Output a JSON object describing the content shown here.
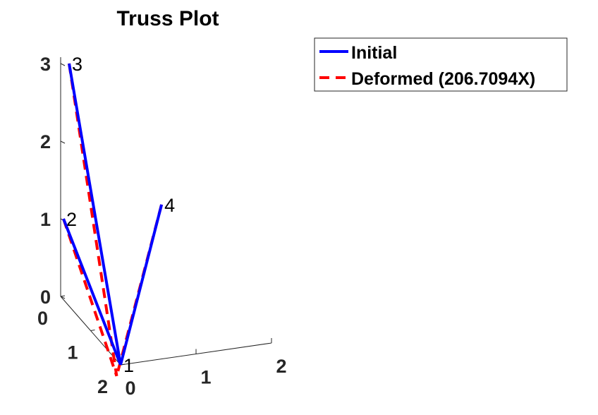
{
  "chart_data": {
    "type": "line",
    "title": "Truss Plot",
    "axes": {
      "x": {
        "ticks": [
          "0",
          "1",
          "2"
        ]
      },
      "y": {
        "ticks": [
          "0",
          "1",
          "2"
        ]
      },
      "z": {
        "ticks": [
          "0",
          "1",
          "2",
          "3"
        ]
      }
    },
    "nodes": [
      {
        "label": "1",
        "x": 0.0,
        "y": 1.7,
        "z": 0.0
      },
      {
        "label": "2",
        "x": 0.0,
        "y": 0.0,
        "z": 1.0
      },
      {
        "label": "3",
        "x": 0.0,
        "y": 0.0,
        "z": 3.0
      },
      {
        "label": "4",
        "x": 1.3,
        "y": 0.0,
        "z": 1.0
      }
    ],
    "series": [
      {
        "name": "Initial",
        "style": "solid",
        "color": "#0000ff",
        "members": [
          [
            "2",
            "1"
          ],
          [
            "3",
            "1"
          ],
          [
            "4",
            "1"
          ]
        ]
      },
      {
        "name": "Deformed (206.7094X)",
        "style": "dashed",
        "color": "#ff0000",
        "deformed_node_1": {
          "x": -0.12,
          "y": 1.85,
          "z": -0.05
        },
        "members": [
          [
            "2",
            "1"
          ],
          [
            "3",
            "1"
          ],
          [
            "4",
            "1"
          ]
        ]
      }
    ],
    "legend": {
      "placement": "top-right"
    },
    "grid": false
  }
}
